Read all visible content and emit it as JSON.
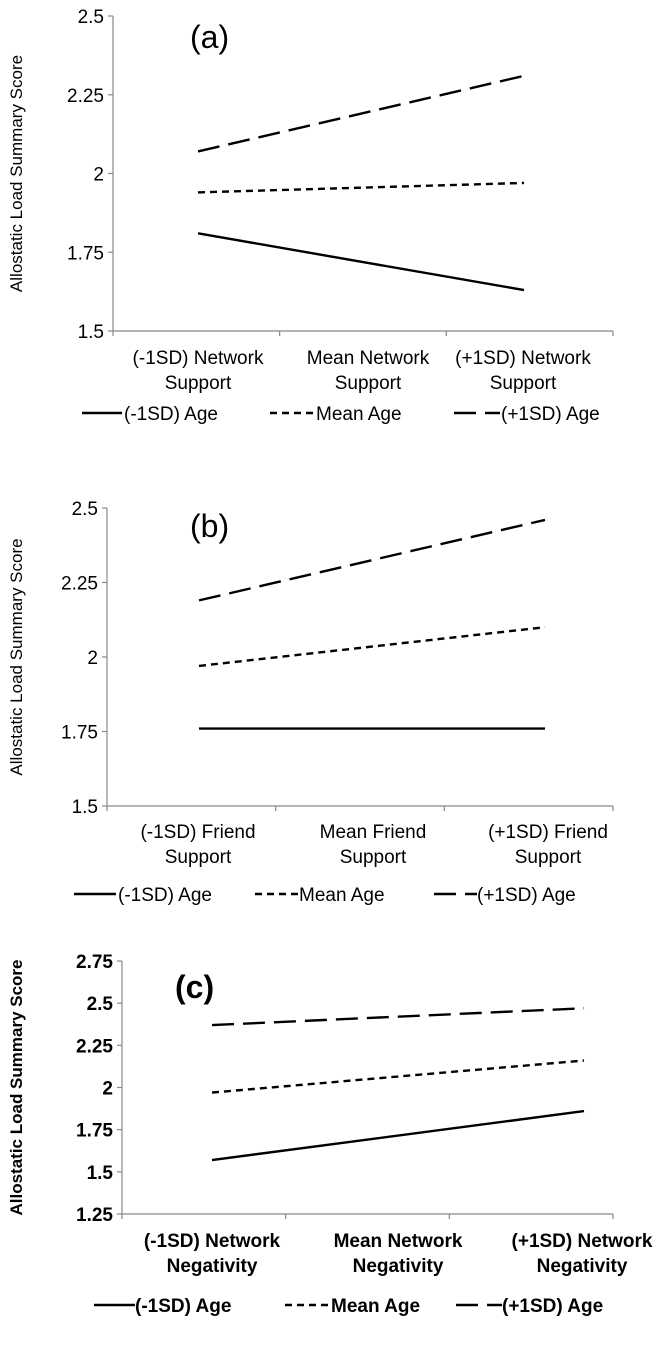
{
  "chart_data": [
    {
      "type": "line",
      "panel_label": "(a)",
      "ylabel": "Allostatic Load Summary Score",
      "ylim": [
        1.5,
        2.5
      ],
      "yticks": [
        "1.5",
        "1.75",
        "2",
        "2.25",
        "2.5"
      ],
      "categories": [
        [
          "(-1SD) Network",
          "Support"
        ],
        [
          "Mean Network",
          "Support"
        ],
        [
          "(+1SD) Network",
          "Support"
        ]
      ],
      "series": [
        {
          "name": "(-1SD) Age",
          "style": "solid",
          "values": [
            1.81,
            null,
            1.63
          ]
        },
        {
          "name": "Mean Age",
          "style": "short-dash",
          "values": [
            1.94,
            null,
            1.97
          ]
        },
        {
          "name": "(+1SD) Age",
          "style": "long-dash",
          "values": [
            2.07,
            null,
            2.31
          ]
        }
      ],
      "legend_position": "bottom",
      "grid": false
    },
    {
      "type": "line",
      "panel_label": "(b)",
      "ylabel": "Allostatic Load Summary Score",
      "ylim": [
        1.5,
        2.5
      ],
      "yticks": [
        "1.5",
        "1.75",
        "2",
        "2.25",
        "2.5"
      ],
      "categories": [
        [
          "(-1SD) Friend",
          "Support"
        ],
        [
          "Mean Friend",
          "Support"
        ],
        [
          "(+1SD) Friend",
          "Support"
        ]
      ],
      "series": [
        {
          "name": "(-1SD) Age",
          "style": "solid",
          "values": [
            1.76,
            null,
            1.76
          ]
        },
        {
          "name": "Mean Age",
          "style": "short-dash",
          "values": [
            1.97,
            null,
            2.1
          ]
        },
        {
          "name": "(+1SD) Age",
          "style": "long-dash",
          "values": [
            2.19,
            null,
            2.46
          ]
        }
      ],
      "legend_position": "bottom",
      "grid": false
    },
    {
      "type": "line",
      "panel_label": "(c)",
      "ylabel": "Allostatic Load Summary Score",
      "ylim": [
        1.25,
        2.75
      ],
      "yticks": [
        "1.25",
        "1.5",
        "1.75",
        "2",
        "2.25",
        "2.5",
        "2.75"
      ],
      "categories": [
        [
          "(-1SD) Network",
          "Negativity"
        ],
        [
          "Mean Network",
          "Negativity"
        ],
        [
          "(+1SD) Network",
          "Negativity"
        ]
      ],
      "series": [
        {
          "name": "(-1SD) Age",
          "style": "solid",
          "values": [
            1.57,
            null,
            1.86
          ]
        },
        {
          "name": "Mean Age",
          "style": "short-dash",
          "values": [
            1.97,
            null,
            2.16
          ]
        },
        {
          "name": "(+1SD) Age",
          "style": "long-dash",
          "values": [
            2.37,
            null,
            2.47
          ]
        }
      ],
      "legend_position": "bottom",
      "grid": false
    }
  ]
}
